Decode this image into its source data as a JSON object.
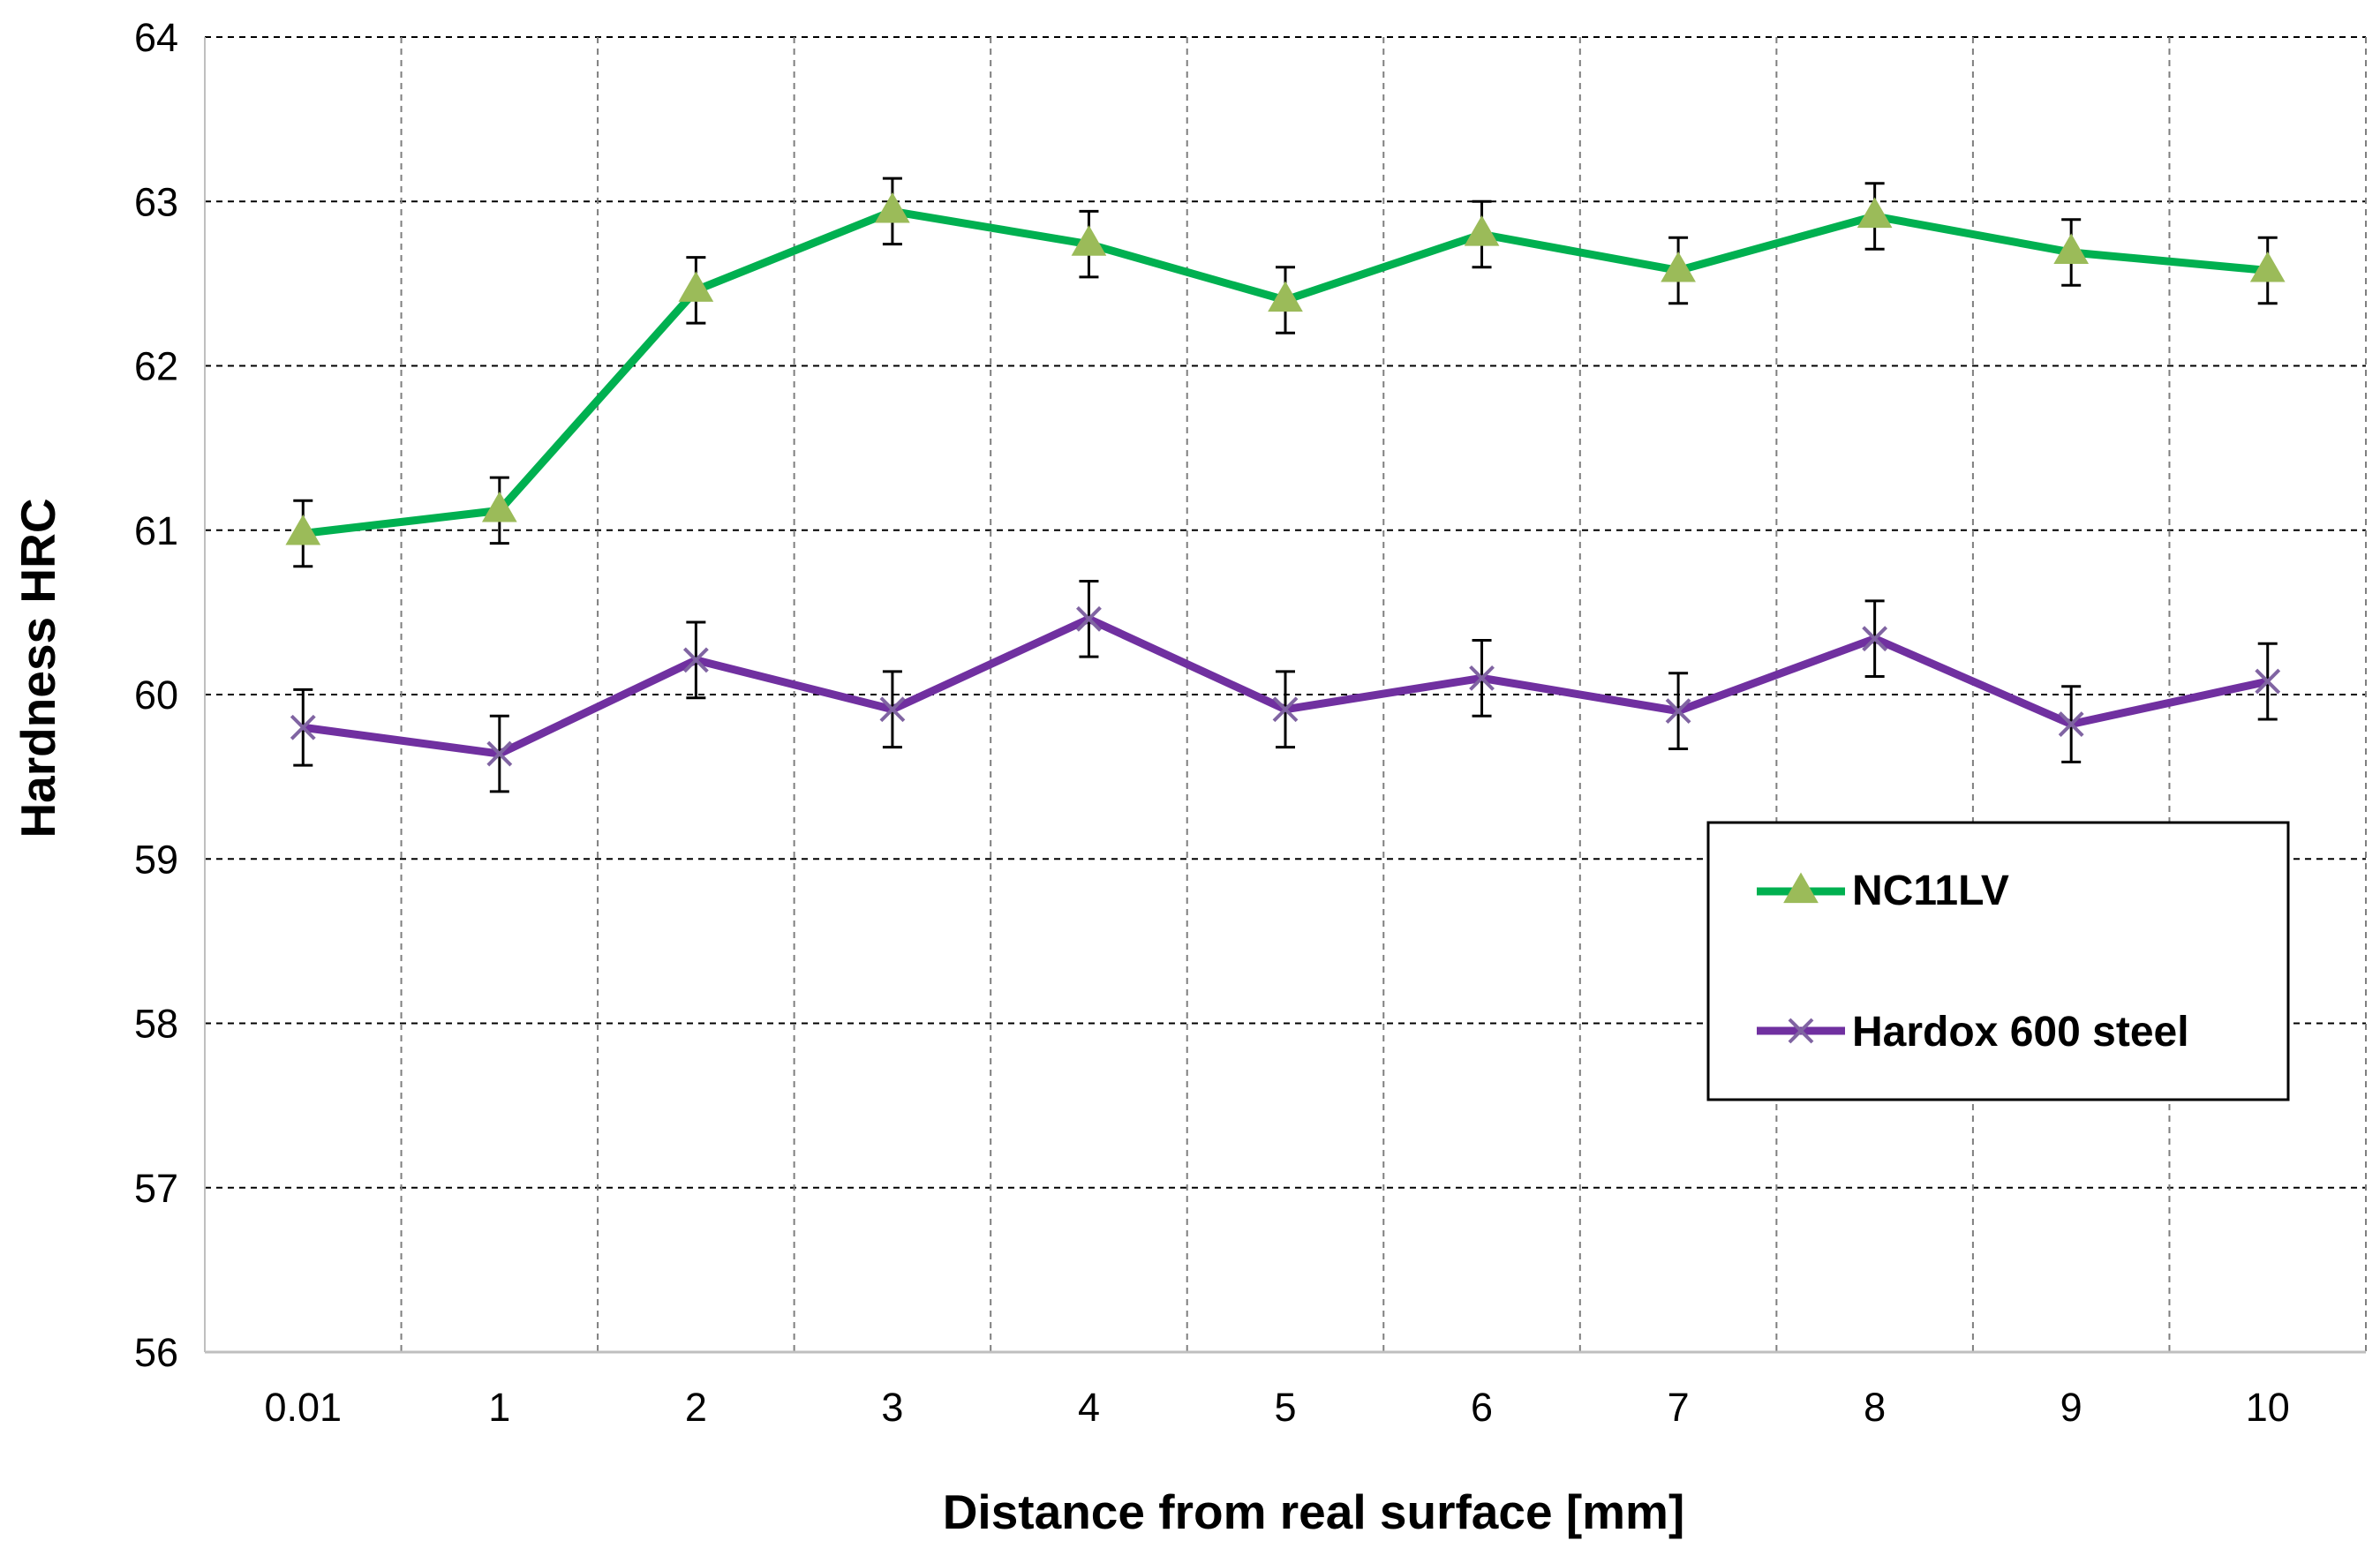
{
  "chart_data": {
    "type": "line",
    "title": "",
    "xlabel": "Distance from real surface [mm]",
    "ylabel": "Hardness HRC",
    "categories": [
      "0.01",
      "1",
      "2",
      "3",
      "4",
      "5",
      "6",
      "7",
      "8",
      "9",
      "10"
    ],
    "ylim": [
      56,
      64
    ],
    "yticks": [
      "56",
      "57",
      "58",
      "59",
      "60",
      "61",
      "62",
      "63",
      "64"
    ],
    "grid": true,
    "legend_position": "lower-right",
    "series": [
      {
        "name": "NC11LV",
        "color": "#00B050",
        "marker": "triangle",
        "marker_color": "#9BBB59",
        "values": [
          60.98,
          61.12,
          62.46,
          62.94,
          62.74,
          62.4,
          62.8,
          62.58,
          62.91,
          62.69,
          62.58
        ],
        "errors": [
          0.2,
          0.2,
          0.2,
          0.2,
          0.2,
          0.2,
          0.2,
          0.2,
          0.2,
          0.2,
          0.2
        ]
      },
      {
        "name": "Hardox 600 steel",
        "color": "#7030A0",
        "marker": "x",
        "marker_color": "#8064A2",
        "values": [
          59.8,
          59.64,
          60.21,
          59.91,
          60.46,
          59.91,
          60.1,
          59.9,
          60.34,
          59.82,
          60.08
        ],
        "errors": [
          0.23,
          0.23,
          0.23,
          0.23,
          0.23,
          0.23,
          0.23,
          0.23,
          0.23,
          0.23,
          0.23
        ]
      }
    ]
  }
}
